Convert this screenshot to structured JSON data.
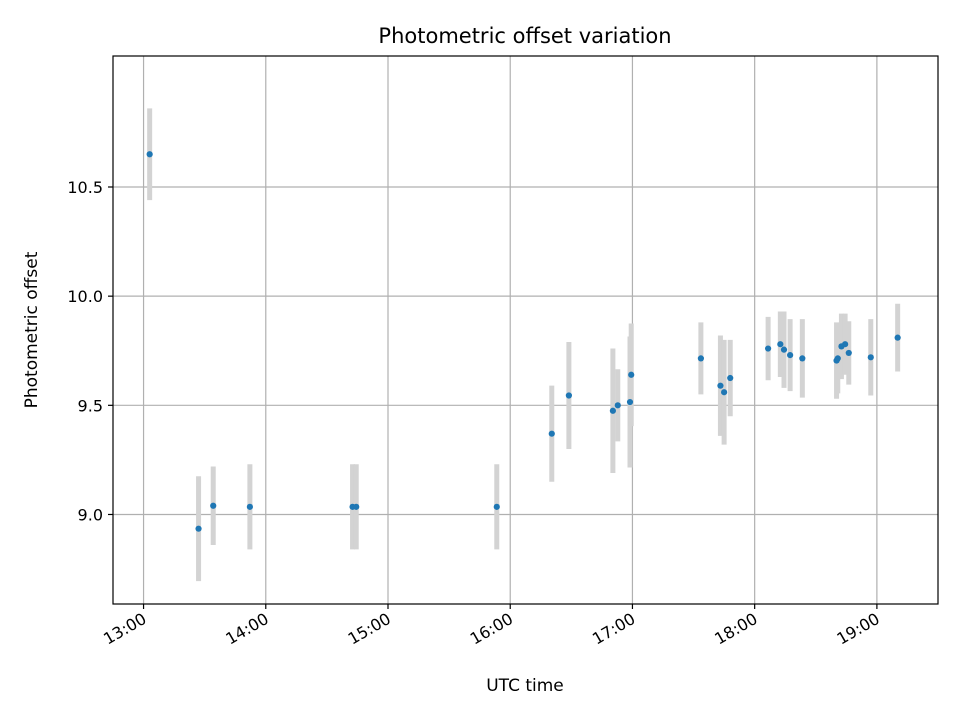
{
  "chart_data": {
    "type": "scatter",
    "title": "Photometric offset variation",
    "xlabel": "UTC time",
    "ylabel": "Photometric offset",
    "x_unit": "hours",
    "xlim": [
      12.75,
      19.5
    ],
    "ylim": [
      8.59,
      11.1
    ],
    "xticks": [
      13,
      14,
      15,
      16,
      17,
      18,
      19
    ],
    "xtick_labels": [
      "13:00",
      "14:00",
      "15:00",
      "16:00",
      "17:00",
      "18:00",
      "19:00"
    ],
    "yticks": [
      9.0,
      9.5,
      10.0,
      10.5
    ],
    "ytick_labels": [
      "9.0",
      "9.5",
      "10.0",
      "10.5"
    ],
    "grid": true,
    "colors": {
      "marker": "#1f77b4",
      "errorbar": "#d3d3d3",
      "grid": "#b0b0b0"
    },
    "points": [
      {
        "x": 13.05,
        "y": 10.65,
        "err": 0.21
      },
      {
        "x": 13.45,
        "y": 8.935,
        "err": 0.24
      },
      {
        "x": 13.57,
        "y": 9.04,
        "err": 0.18
      },
      {
        "x": 13.87,
        "y": 9.035,
        "err": 0.195
      },
      {
        "x": 14.71,
        "y": 9.035,
        "err": 0.195
      },
      {
        "x": 14.74,
        "y": 9.035,
        "err": 0.195
      },
      {
        "x": 15.89,
        "y": 9.035,
        "err": 0.195
      },
      {
        "x": 16.34,
        "y": 9.37,
        "err": 0.22
      },
      {
        "x": 16.48,
        "y": 9.545,
        "err": 0.245
      },
      {
        "x": 16.84,
        "y": 9.475,
        "err": 0.285
      },
      {
        "x": 16.88,
        "y": 9.5,
        "err": 0.165
      },
      {
        "x": 16.98,
        "y": 9.515,
        "err": 0.3
      },
      {
        "x": 16.99,
        "y": 9.64,
        "err": 0.235
      },
      {
        "x": 17.56,
        "y": 9.715,
        "err": 0.165
      },
      {
        "x": 17.72,
        "y": 9.59,
        "err": 0.23
      },
      {
        "x": 17.75,
        "y": 9.56,
        "err": 0.24
      },
      {
        "x": 17.8,
        "y": 9.625,
        "err": 0.175
      },
      {
        "x": 18.11,
        "y": 9.76,
        "err": 0.145
      },
      {
        "x": 18.21,
        "y": 9.78,
        "err": 0.15
      },
      {
        "x": 18.24,
        "y": 9.755,
        "err": 0.175
      },
      {
        "x": 18.29,
        "y": 9.73,
        "err": 0.165
      },
      {
        "x": 18.39,
        "y": 9.715,
        "err": 0.18
      },
      {
        "x": 18.67,
        "y": 9.705,
        "err": 0.175
      },
      {
        "x": 18.68,
        "y": 9.715,
        "err": 0.16
      },
      {
        "x": 18.71,
        "y": 9.77,
        "err": 0.15
      },
      {
        "x": 18.74,
        "y": 9.78,
        "err": 0.14
      },
      {
        "x": 18.77,
        "y": 9.74,
        "err": 0.145
      },
      {
        "x": 18.95,
        "y": 9.72,
        "err": 0.175
      },
      {
        "x": 19.17,
        "y": 9.81,
        "err": 0.155
      }
    ]
  }
}
